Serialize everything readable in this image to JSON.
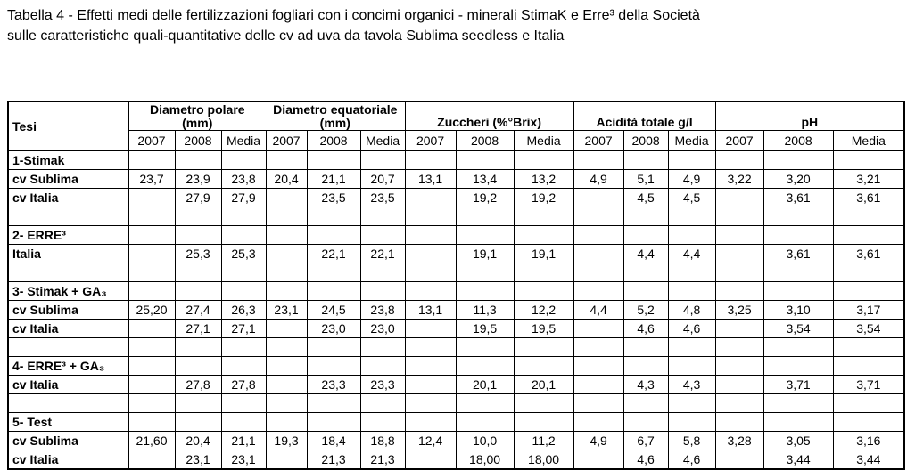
{
  "title": {
    "lines": [
      "Tabella 4 - Effetti medi delle fertilizzazioni fogliari con i concimi organici - minerali StimaK e Erre³ della Società",
      "sulle caratteristiche quali-quantitative delle cv ad uva da tavola Sublima seedless e Italia"
    ]
  },
  "table": {
    "corner_header": "Tesi",
    "groups": [
      {
        "line1": "Diametro polare",
        "line2": "(mm)"
      },
      {
        "line1": "Diametro equatoriale",
        "line2": "(mm)"
      },
      {
        "line1": "Zuccheri (%°Brix)"
      },
      {
        "line1": "Acidità totale g/l"
      },
      {
        "line1": "pH"
      }
    ],
    "subheaders": [
      "2007",
      "2008",
      "Media"
    ],
    "rows": [
      {
        "label": "1-Stimak",
        "cells": []
      },
      {
        "label": "cv Sublima",
        "cells": [
          "23,7",
          "23,9",
          "23,8",
          "20,4",
          "21,1",
          "20,7",
          "13,1",
          "13,4",
          "13,2",
          "4,9",
          "5,1",
          "4,9",
          "3,22",
          "3,20",
          "3,21"
        ]
      },
      {
        "label": "cv Italia",
        "cells": [
          "",
          "27,9",
          "27,9",
          "",
          "23,5",
          "23,5",
          "",
          "19,2",
          "19,2",
          "",
          "4,5",
          "4,5",
          "",
          "3,61",
          "3,61"
        ]
      },
      {
        "label": "",
        "cells": []
      },
      {
        "label": "2- ERRE³",
        "cells": []
      },
      {
        "label": "Italia",
        "cells": [
          "",
          "25,3",
          "25,3",
          "",
          "22,1",
          "22,1",
          "",
          "19,1",
          "19,1",
          "",
          "4,4",
          "4,4",
          "",
          "3,61",
          "3,61"
        ]
      },
      {
        "label": "",
        "cells": []
      },
      {
        "label": "3- Stimak + GA₃",
        "cells": []
      },
      {
        "label": "cv Sublima",
        "cells": [
          "25,20",
          "27,4",
          "26,3",
          "23,1",
          "24,5",
          "23,8",
          "13,1",
          "11,3",
          "12,2",
          "4,4",
          "5,2",
          "4,8",
          "3,25",
          "3,10",
          "3,17"
        ]
      },
      {
        "label": "cv Italia",
        "cells": [
          "",
          "27,1",
          "27,1",
          "",
          "23,0",
          "23,0",
          "",
          "19,5",
          "19,5",
          "",
          "4,6",
          "4,6",
          "",
          "3,54",
          "3,54"
        ]
      },
      {
        "label": "",
        "cells": []
      },
      {
        "label": "4- ERRE³ + GA₃",
        "cells": []
      },
      {
        "label": "cv Italia",
        "cells": [
          "",
          "27,8",
          "27,8",
          "",
          "23,3",
          "23,3",
          "",
          "20,1",
          "20,1",
          "",
          "4,3",
          "4,3",
          "",
          "3,71",
          "3,71"
        ]
      },
      {
        "label": "",
        "cells": []
      },
      {
        "label": "5- Test",
        "cells": []
      },
      {
        "label": "cv Sublima",
        "cells": [
          "21,60",
          "20,4",
          "21,1",
          "19,3",
          "18,4",
          "18,8",
          "12,4",
          "10,0",
          "11,2",
          "4,9",
          "6,7",
          "5,8",
          "3,28",
          "3,05",
          "3,16"
        ]
      },
      {
        "label": "cv Italia",
        "cells": [
          "",
          "23,1",
          "23,1",
          "",
          "21,3",
          "21,3",
          "",
          "18,00",
          "18,00",
          "",
          "4,6",
          "4,6",
          "",
          "3,44",
          "3,44"
        ]
      }
    ]
  }
}
